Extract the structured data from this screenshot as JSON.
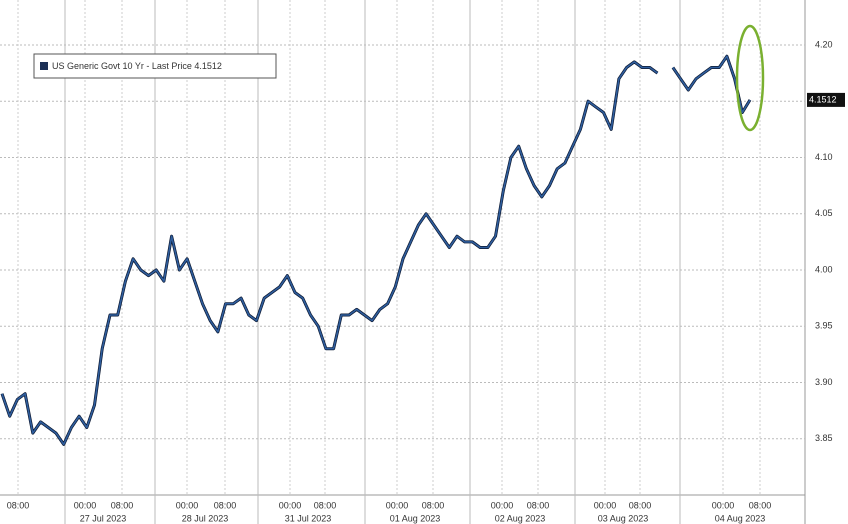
{
  "chart_data": {
    "type": "line",
    "series": [
      {
        "name": "US Generic Govt 10 Yr - Last Price 4.1512",
        "color": "#2f5e9e",
        "values": [
          3.89,
          3.87,
          3.885,
          3.89,
          3.855,
          3.865,
          3.86,
          3.855,
          3.845,
          3.86,
          3.87,
          3.86,
          3.88,
          3.93,
          3.96,
          3.96,
          3.99,
          4.01,
          4.0,
          3.995,
          4.0,
          3.99,
          4.03,
          4.0,
          4.01,
          3.99,
          3.97,
          3.955,
          3.945,
          3.97,
          3.97,
          3.975,
          3.96,
          3.955,
          3.975,
          3.98,
          3.985,
          3.995,
          3.98,
          3.975,
          3.96,
          3.95,
          3.93,
          3.93,
          3.96,
          3.96,
          3.965,
          3.96,
          3.955,
          3.965,
          3.97,
          3.985,
          4.01,
          4.025,
          4.04,
          4.05,
          4.04,
          4.03,
          4.02,
          4.03,
          4.025,
          4.025,
          4.02,
          4.02,
          4.03,
          4.07,
          4.1,
          4.11,
          4.09,
          4.075,
          4.065,
          4.075,
          4.09,
          4.095,
          4.11,
          4.125,
          4.15,
          4.145,
          4.14,
          4.125,
          4.17,
          4.18,
          4.185,
          4.18,
          4.18,
          4.175,
          null,
          4.18,
          4.17,
          4.16,
          4.17,
          4.175,
          4.18,
          4.18,
          4.19,
          4.17,
          4.14,
          4.1512
        ]
      }
    ],
    "last_price": 4.1512,
    "ylim": [
      3.8,
      4.24
    ],
    "yticks": [
      {
        "value": 3.85,
        "label": "3.85"
      },
      {
        "value": 3.9,
        "label": "3.90"
      },
      {
        "value": 3.95,
        "label": "3.95"
      },
      {
        "value": 4.0,
        "label": "4.00"
      },
      {
        "value": 4.05,
        "label": "4.05"
      },
      {
        "value": 4.1,
        "label": "4.10"
      },
      {
        "value": 4.15,
        "label": "4.15"
      },
      {
        "value": 4.2,
        "label": "4.20"
      }
    ],
    "time_labels": [
      "08:00",
      "00:00",
      "08:00",
      "00:00",
      "08:00",
      "00:00",
      "08:00",
      "00:00",
      "08:00",
      "00:00",
      "08:00",
      "00:00",
      "08:00",
      "00:00",
      "08:00"
    ],
    "date_labels": [
      "27 Jul 2023",
      "28 Jul 2023",
      "31 Jul 2023",
      "01 Aug 2023",
      "02 Aug 2023",
      "03 Aug 2023",
      "04 Aug 2023"
    ],
    "grid": true
  }
}
